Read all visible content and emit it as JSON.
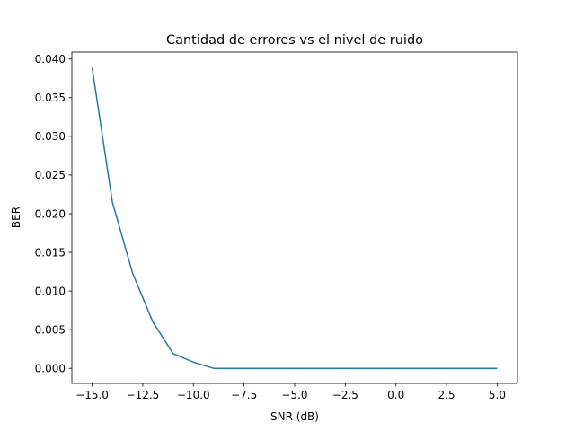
{
  "chart_data": {
    "type": "line",
    "title": "Cantidad de errores vs el nivel de ruido",
    "xlabel": "SNR (dB)",
    "ylabel": "BER",
    "xlim": [
      -16,
      6
    ],
    "ylim": [
      -0.00195,
      0.0409
    ],
    "xticks": [
      -15.0,
      -12.5,
      -10.0,
      -7.5,
      -5.0,
      -2.5,
      0.0,
      2.5,
      5.0
    ],
    "xtick_labels": [
      "−15.0",
      "−12.5",
      "−10.0",
      "−7.5",
      "−5.0",
      "−2.5",
      "0.0",
      "2.5",
      "5.0"
    ],
    "yticks": [
      0.0,
      0.005,
      0.01,
      0.015,
      0.02,
      0.025,
      0.03,
      0.035,
      0.04
    ],
    "ytick_labels": [
      "0.000",
      "0.005",
      "0.010",
      "0.015",
      "0.020",
      "0.025",
      "0.030",
      "0.035",
      "0.040"
    ],
    "grid": false,
    "series": [
      {
        "color": "#1f77b4",
        "x": [
          -15,
          -14,
          -13,
          -12,
          -11,
          -10,
          -9,
          -8,
          -7,
          -6,
          -5,
          -4,
          -3,
          -2,
          -1,
          0,
          1,
          2,
          3,
          4,
          5
        ],
        "y": [
          0.0389,
          0.0215,
          0.0123,
          0.006,
          0.0019,
          0.0008,
          0.0,
          0.0,
          0.0,
          0.0,
          0.0,
          0.0,
          0.0,
          0.0,
          0.0,
          0.0,
          0.0,
          0.0,
          0.0,
          0.0,
          0.0
        ]
      }
    ]
  }
}
